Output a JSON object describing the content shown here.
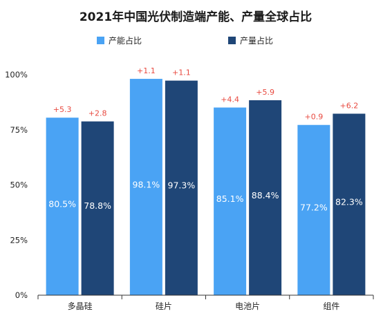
{
  "chart_data": {
    "type": "bar",
    "title": "2021年中国光伏制造端产能、产量全球占比",
    "categories": [
      "多晶硅",
      "硅片",
      "电池片",
      "组件"
    ],
    "series": [
      {
        "name": "产能占比",
        "color": "#4aa3f4",
        "values": [
          80.5,
          98.1,
          85.1,
          77.2
        ],
        "value_labels": [
          "80.5%",
          "98.1%",
          "85.1%",
          "77.2%"
        ],
        "change_labels": [
          "+5.3",
          "+1.1",
          "+4.4",
          "+0.9"
        ]
      },
      {
        "name": "产量占比",
        "color": "#1f4677",
        "values": [
          78.8,
          97.3,
          88.4,
          82.3
        ],
        "value_labels": [
          "78.8%",
          "97.3%",
          "88.4%",
          "82.3%"
        ],
        "change_labels": [
          "+2.8",
          "+1.1",
          "+5.9",
          "+6.2"
        ]
      }
    ],
    "ylim": [
      0,
      100
    ],
    "yticks": [
      "0%",
      "25%",
      "50%",
      "75%",
      "100%"
    ],
    "ytick_values": [
      0,
      25,
      50,
      75,
      100
    ],
    "xlabel": "",
    "ylabel": "",
    "grid": false,
    "legend_position": "top",
    "change_label_color": "#e8493f"
  }
}
